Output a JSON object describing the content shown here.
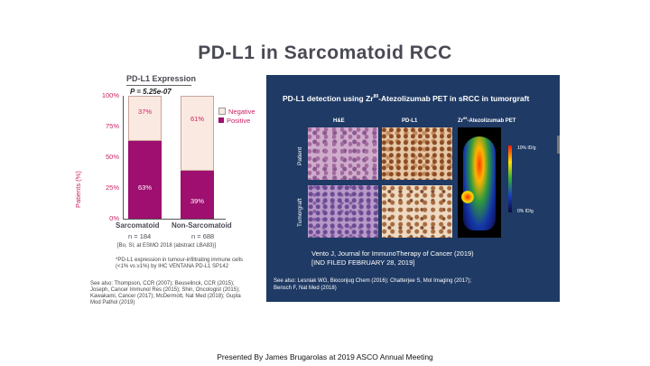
{
  "slide": {
    "title": "PD-L1 in Sarcomatoid RCC",
    "footer": "Presented By James Brugarolas at 2019 ASCO Annual Meeting"
  },
  "chart_data": {
    "type": "bar",
    "title": "PD-L1 Expression",
    "annotation": "P = 5.25e-07",
    "ylabel": "Patients (%)",
    "yticks": [
      "0%",
      "25%",
      "50%",
      "75%",
      "100%"
    ],
    "ylim": [
      0,
      100
    ],
    "stacked": true,
    "categories": [
      "Sarcomatoid",
      "Non-Sarcomatoid"
    ],
    "n_labels": [
      "n = 184",
      "n = 688"
    ],
    "series": [
      {
        "name": "Positive",
        "values": [
          63,
          39
        ],
        "labels": [
          "63%",
          "39%"
        ],
        "color": "#9e0f6f"
      },
      {
        "name": "Negative",
        "values": [
          37,
          61
        ],
        "labels": [
          "37%",
          "61%"
        ],
        "color": "#fae9e1"
      }
    ],
    "legend_position": "right"
  },
  "notes": {
    "source": "[Bo, SI, at ESMO 2018 (abstract LBA83)]",
    "definition_1": "*PD-L1 expression in tumour-infiltrating immune cells",
    "definition_2": "(<1% vs ≥1%) by IHC VENTANA PD-L1 SP142",
    "see_also_1": "See also: Thompson, CCR (2007); Beuselinck, CCR (2015);",
    "see_also_2": "Joseph, Cancer Immunol Res (2015); Shin, Oncologist (2015);",
    "see_also_3": "Kawakami, Cancer (2017); McDermott, Nat Med (2018); Gupta",
    "see_also_4": "Mod Pathol (2019)"
  },
  "panel": {
    "title_pre": "PD-L1 detection using Zr",
    "title_sup": "89",
    "title_post": "-Atezolizumab PET in sRCC in tumorgraft",
    "col_he": "H&E",
    "col_pdl1": "PD-L1",
    "col_pet_pre": "Zr",
    "col_pet_sup": "89",
    "col_pet_post": "-Atezolizumab PET",
    "row_patient": "Patient",
    "row_tumorgraft": "Tumorgraft",
    "scale_top": "10% ID/g",
    "scale_bottom": "0% ID/g",
    "citation_1": "Vento J, Journal for ImmunoTherapy of Cancer (2019)",
    "citation_2": "[IND FILED FEBRUARY 28, 2019]",
    "see_also_1": "See also: Lesniak WG, Bioconjug Chem (2016); Chatterjee S, Mol Imaging (2017);",
    "see_also_2": "Bensch F, Nat Med (2018)"
  }
}
